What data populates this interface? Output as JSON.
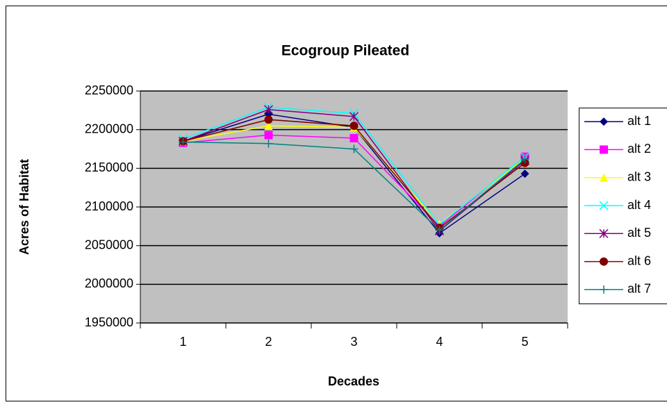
{
  "chart_data": {
    "type": "line",
    "title": "Ecogroup Pileated",
    "x_label": "Decades",
    "y_label": "Acres of Habitat",
    "categories": [
      "1",
      "2",
      "3",
      "4",
      "5"
    ],
    "ylim": [
      1950000,
      2250000
    ],
    "yticks": [
      1950000,
      2000000,
      2050000,
      2100000,
      2150000,
      2200000,
      2250000
    ],
    "grid": true,
    "legend": "right",
    "plot_background": "#c0c0c0",
    "series": [
      {
        "name": "alt 1",
        "color": "#000080",
        "marker": "diamond",
        "values": [
          2185000,
          2220000,
          2203000,
          2066000,
          2143000
        ]
      },
      {
        "name": "alt 2",
        "color": "#ff00ff",
        "marker": "square",
        "values": [
          2183000,
          2193000,
          2189000,
          2075000,
          2165000
        ]
      },
      {
        "name": "alt 3",
        "color": "#ffff00",
        "marker": "triangle",
        "values": [
          2185000,
          2205000,
          2203000,
          2078000,
          2163000
        ]
      },
      {
        "name": "alt 4",
        "color": "#00ffff",
        "marker": "x",
        "values": [
          2188000,
          2229000,
          2221000,
          2077000,
          2165000
        ]
      },
      {
        "name": "alt 5",
        "color": "#800080",
        "marker": "star",
        "values": [
          2185000,
          2226000,
          2217000,
          2069000,
          2160000
        ]
      },
      {
        "name": "alt 6",
        "color": "#800000",
        "marker": "circle",
        "values": [
          2185000,
          2213000,
          2205000,
          2073000,
          2157000
        ]
      },
      {
        "name": "alt 7",
        "color": "#008080",
        "marker": "plus",
        "values": [
          2184000,
          2182000,
          2175000,
          2070000,
          2162000
        ]
      }
    ]
  }
}
